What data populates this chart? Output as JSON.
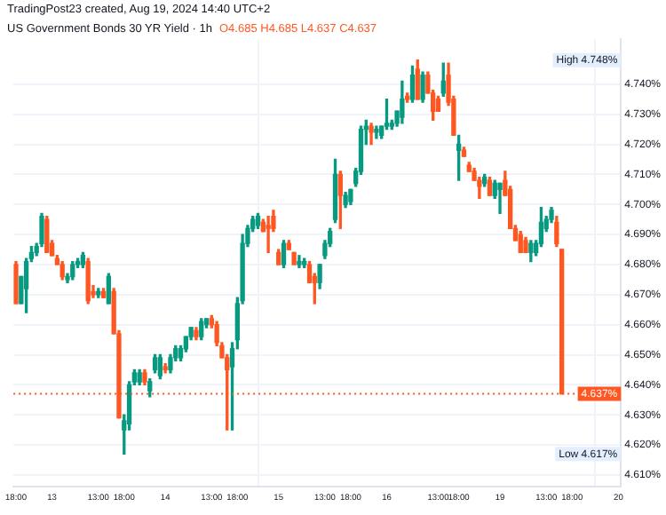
{
  "chart_data": {
    "type": "candlestick",
    "title": "US Government Bonds 30 YR Yield · 1h",
    "subtitle": "O4.685 H4.685 L4.637 C4.637",
    "annotations": [
      "TradingPost23 created, Aug 19, 2024 14:40 UTC+2",
      "High 4.748%",
      "Low 4.617%"
    ],
    "categories": [
      "18:00",
      null,
      null,
      null,
      null,
      null,
      null,
      "13",
      null,
      null,
      null,
      null,
      null,
      null,
      null,
      null,
      "13:00",
      null,
      null,
      null,
      null,
      "18:00",
      null,
      null,
      null,
      null,
      null,
      null,
      null,
      "14",
      null,
      null,
      null,
      null,
      null,
      null,
      null,
      null,
      "13:00",
      null,
      null,
      null,
      null,
      "18:00",
      null,
      null,
      null,
      null,
      null,
      null,
      null,
      "15",
      null,
      null,
      null,
      null,
      null,
      null,
      null,
      null,
      "13:00",
      null,
      null,
      null,
      null,
      "18:00",
      null,
      null,
      null,
      null,
      null,
      null,
      "16",
      null,
      null,
      null,
      null,
      null,
      null,
      null,
      null,
      null,
      "13:00",
      null,
      null,
      null,
      "18:00",
      null,
      null,
      null,
      null,
      null,
      null,
      null,
      "19",
      null,
      null,
      null,
      null,
      null,
      null,
      null,
      null,
      "13:00",
      null,
      null,
      null,
      null,
      "18:00",
      null,
      null,
      null,
      null,
      null,
      null,
      null,
      null,
      "20"
    ],
    "ohlc": [
      [
        4.68,
        4.681,
        4.667,
        4.667
      ],
      [
        4.667,
        4.676,
        4.667,
        4.676
      ],
      [
        4.672,
        4.682,
        4.664,
        4.681
      ],
      [
        4.682,
        4.686,
        4.681,
        4.684
      ],
      [
        4.684,
        4.687,
        4.683,
        4.686
      ],
      [
        4.687,
        4.697,
        4.686,
        4.696
      ],
      [
        4.695,
        4.696,
        4.684,
        4.684
      ],
      [
        4.687,
        4.688,
        4.683,
        4.683
      ],
      [
        4.682,
        4.683,
        4.68,
        4.68
      ],
      [
        4.68,
        4.681,
        4.675,
        4.676
      ],
      [
        4.675,
        4.677,
        4.674,
        4.676
      ],
      [
        4.676,
        4.681,
        4.675,
        4.68
      ],
      [
        4.68,
        4.682,
        4.679,
        4.681
      ],
      [
        4.68,
        4.684,
        4.679,
        4.683
      ],
      [
        4.681,
        4.682,
        4.667,
        4.668
      ],
      [
        4.671,
        4.673,
        4.669,
        4.67
      ],
      [
        4.67,
        4.672,
        4.669,
        4.671
      ],
      [
        4.671,
        4.672,
        4.669,
        4.669
      ],
      [
        4.667,
        4.677,
        4.667,
        4.676
      ],
      [
        4.671,
        4.672,
        4.657,
        4.657
      ],
      [
        4.657,
        4.658,
        4.629,
        4.629
      ],
      [
        4.625,
        4.63,
        4.617,
        4.628
      ],
      [
        4.627,
        4.641,
        4.625,
        4.64
      ],
      [
        4.641,
        4.645,
        4.64,
        4.644
      ],
      [
        4.641,
        4.645,
        4.64,
        4.644
      ],
      [
        4.644,
        4.645,
        4.64,
        4.641
      ],
      [
        4.638,
        4.642,
        4.636,
        4.641
      ],
      [
        4.645,
        4.65,
        4.644,
        4.649
      ],
      [
        4.643,
        4.65,
        4.642,
        4.649
      ],
      [
        4.646,
        4.647,
        4.644,
        4.645
      ],
      [
        4.645,
        4.65,
        4.644,
        4.649
      ],
      [
        4.649,
        4.653,
        4.648,
        4.652
      ],
      [
        4.649,
        4.653,
        4.648,
        4.652
      ],
      [
        4.652,
        4.656,
        4.651,
        4.656
      ],
      [
        4.656,
        4.659,
        4.655,
        4.659
      ],
      [
        4.658,
        4.659,
        4.655,
        4.656
      ],
      [
        4.656,
        4.662,
        4.655,
        4.661
      ],
      [
        4.66,
        4.662,
        4.659,
        4.662
      ],
      [
        4.662,
        4.663,
        4.659,
        4.66
      ],
      [
        4.66,
        4.661,
        4.653,
        4.654
      ],
      [
        4.653,
        4.654,
        4.649,
        4.649
      ],
      [
        4.649,
        4.65,
        4.625,
        4.645
      ],
      [
        4.646,
        4.654,
        4.625,
        4.652
      ],
      [
        4.655,
        4.669,
        4.652,
        4.667
      ],
      [
        4.668,
        4.69,
        4.667,
        4.687
      ],
      [
        4.687,
        4.693,
        4.686,
        4.692
      ],
      [
        4.692,
        4.696,
        4.691,
        4.695
      ],
      [
        4.693,
        4.697,
        4.692,
        4.696
      ],
      [
        4.694,
        4.695,
        4.691,
        4.691
      ],
      [
        4.693,
        4.696,
        4.684,
        4.692
      ],
      [
        4.696,
        4.698,
        4.691,
        4.692
      ],
      [
        4.684,
        4.685,
        4.68,
        4.68
      ],
      [
        4.68,
        4.688,
        4.679,
        4.687
      ],
      [
        4.687,
        4.688,
        4.685,
        4.685
      ],
      [
        4.684,
        4.684,
        4.68,
        4.68
      ],
      [
        4.68,
        4.683,
        4.679,
        4.681
      ],
      [
        4.68,
        4.682,
        4.679,
        4.681
      ],
      [
        4.68,
        4.681,
        4.674,
        4.674
      ],
      [
        4.676,
        4.677,
        4.667,
        4.674
      ],
      [
        4.674,
        4.68,
        4.672,
        4.68
      ],
      [
        4.683,
        4.688,
        4.682,
        4.687
      ],
      [
        4.687,
        4.692,
        4.686,
        4.691
      ],
      [
        4.695,
        4.715,
        4.694,
        4.71
      ],
      [
        4.71,
        4.711,
        4.692,
        4.703
      ],
      [
        4.7,
        4.704,
        4.699,
        4.703
      ],
      [
        4.701,
        4.705,
        4.7,
        4.705
      ],
      [
        4.707,
        4.712,
        4.706,
        4.711
      ],
      [
        4.711,
        4.726,
        4.71,
        4.725
      ],
      [
        4.725,
        4.728,
        4.72,
        4.726
      ],
      [
        4.726,
        4.727,
        4.72,
        4.724
      ],
      [
        4.724,
        4.726,
        4.722,
        4.725
      ],
      [
        4.723,
        4.726,
        4.722,
        4.726
      ],
      [
        4.726,
        4.735,
        4.725,
        4.727
      ],
      [
        4.726,
        4.728,
        4.725,
        4.727
      ],
      [
        4.727,
        4.731,
        4.726,
        4.731
      ],
      [
        4.729,
        4.741,
        4.727,
        4.735
      ],
      [
        4.736,
        4.737,
        4.734,
        4.735
      ],
      [
        4.735,
        4.746,
        4.734,
        4.743
      ],
      [
        4.745,
        4.748,
        4.735,
        4.735
      ],
      [
        4.735,
        4.744,
        4.734,
        4.743
      ],
      [
        4.743,
        4.744,
        4.737,
        4.737
      ],
      [
        4.737,
        4.738,
        4.728,
        4.731
      ],
      [
        4.735,
        4.736,
        4.731,
        4.731
      ],
      [
        4.737,
        4.747,
        4.736,
        4.741
      ],
      [
        4.743,
        4.747,
        4.733,
        4.734
      ],
      [
        4.735,
        4.736,
        4.723,
        4.723
      ],
      [
        4.718,
        4.723,
        4.708,
        4.72
      ],
      [
        4.718,
        4.719,
        4.716,
        4.716
      ],
      [
        4.713,
        4.714,
        4.711,
        4.711
      ],
      [
        4.711,
        4.712,
        4.708,
        4.708
      ],
      [
        4.708,
        4.709,
        4.702,
        4.706
      ],
      [
        4.707,
        4.71,
        4.706,
        4.709
      ],
      [
        4.708,
        4.709,
        4.703,
        4.703
      ],
      [
        4.703,
        4.708,
        4.702,
        4.707
      ],
      [
        4.705,
        4.707,
        4.697,
        4.707
      ],
      [
        4.708,
        4.711,
        4.703,
        4.703
      ],
      [
        4.705,
        4.706,
        4.692,
        4.692
      ],
      [
        4.692,
        4.693,
        4.688,
        4.688
      ],
      [
        4.69,
        4.691,
        4.684,
        4.684
      ],
      [
        4.688,
        4.689,
        4.684,
        4.684
      ],
      [
        4.684,
        4.688,
        4.681,
        4.687
      ],
      [
        4.684,
        4.688,
        4.683,
        4.687
      ],
      [
        4.687,
        4.699,
        4.686,
        4.694
      ],
      [
        4.692,
        4.696,
        4.691,
        4.695
      ],
      [
        4.695,
        4.699,
        4.694,
        4.698
      ],
      [
        4.694,
        4.696,
        4.686,
        4.687
      ],
      [
        4.685,
        4.685,
        4.637,
        4.637
      ],
      null,
      null,
      null,
      null,
      null,
      null,
      null,
      null,
      null,
      null,
      null
    ],
    "colors": [
      "#ff5722",
      "#089981",
      "#089981",
      "#089981",
      "#089981",
      "#089981",
      "#ff5722",
      "#ff5722",
      "#ff5722",
      "#ff5722",
      "#089981",
      "#089981",
      "#089981",
      "#089981",
      "#ff5722",
      "#ff5722",
      "#089981",
      "#ff5722",
      "#089981",
      "#ff5722",
      "#ff5722",
      "#089981",
      "#089981",
      "#089981",
      "#089981",
      "#ff5722",
      "#089981",
      "#089981",
      "#089981",
      "#ff5722",
      "#089981",
      "#089981",
      "#089981",
      "#089981",
      "#089981",
      "#ff5722",
      "#089981",
      "#089981",
      "#ff5722",
      "#ff5722",
      "#ff5722",
      "#ff5722",
      "#089981",
      "#089981",
      "#089981",
      "#089981",
      "#089981",
      "#089981",
      "#ff5722",
      "#ff5722",
      "#ff5722",
      "#ff5722",
      "#089981",
      "#ff5722",
      "#ff5722",
      "#089981",
      "#089981",
      "#ff5722",
      "#ff5722",
      "#089981",
      "#089981",
      "#089981",
      "#089981",
      "#ff5722",
      "#089981",
      "#089981",
      "#089981",
      "#089981",
      "#089981",
      "#ff5722",
      "#089981",
      "#089981",
      "#089981",
      "#089981",
      "#089981",
      "#089981",
      "#ff5722",
      "#089981",
      "#ff5722",
      "#089981",
      "#ff5722",
      "#ff5722",
      "#ff5722",
      "#089981",
      "#ff5722",
      "#ff5722",
      "#089981",
      "#ff5722",
      "#ff5722",
      "#ff5722",
      "#ff5722",
      "#089981",
      "#ff5722",
      "#089981",
      "#089981",
      "#ff5722",
      "#ff5722",
      "#ff5722",
      "#ff5722",
      "#ff5722",
      "#089981",
      "#089981",
      "#089981",
      "#089981",
      "#089981",
      "#ff5722",
      "#ff5722",
      null,
      null,
      null,
      null,
      null,
      null,
      null,
      null,
      null,
      null,
      null
    ],
    "ylim": [
      4.606,
      4.755
    ],
    "yticks": [
      {
        "value": 4.61,
        "label": "4.610%"
      },
      {
        "value": 4.62,
        "label": "4.620%"
      },
      {
        "value": 4.63,
        "label": "4.630%"
      },
      {
        "value": 4.64,
        "label": "4.640%"
      },
      {
        "value": 4.65,
        "label": "4.650%"
      },
      {
        "value": 4.66,
        "label": "4.660%"
      },
      {
        "value": 4.67,
        "label": "4.670%"
      },
      {
        "value": 4.68,
        "label": "4.680%"
      },
      {
        "value": 4.69,
        "label": "4.690%"
      },
      {
        "value": 4.7,
        "label": "4.700%"
      },
      {
        "value": 4.71,
        "label": "4.710%"
      },
      {
        "value": 4.72,
        "label": "4.720%"
      },
      {
        "value": 4.73,
        "label": "4.730%"
      },
      {
        "value": 4.74,
        "label": "4.740%"
      }
    ],
    "ref_lines": [
      {
        "axis": "y",
        "value": 4.637,
        "label": "4.637%",
        "color": "#ff5722",
        "line_style": "dotted"
      }
    ],
    "grid": true,
    "legend": false
  }
}
